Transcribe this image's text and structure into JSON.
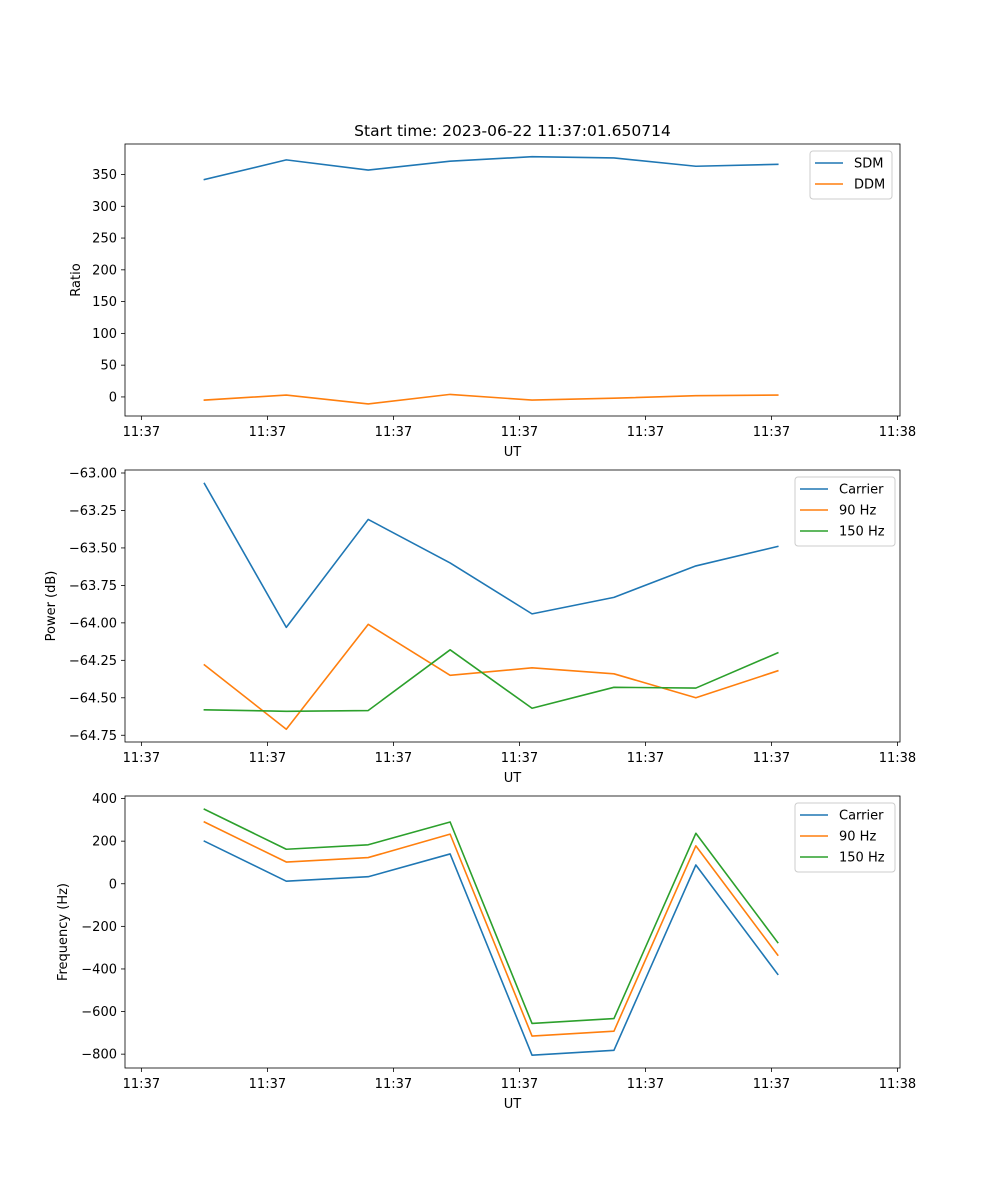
{
  "figure_title": "Start time: 2023-06-22 11:37:01.650714",
  "chart_data": [
    {
      "type": "line",
      "ylabel": "Ratio",
      "xlabel": "UT",
      "x_tick_labels": [
        "11:37",
        "11:37",
        "11:37",
        "11:37",
        "11:37",
        "11:37",
        "11:38"
      ],
      "x_tick_positions": [
        0,
        1,
        2,
        3,
        4,
        5,
        6
      ],
      "x_range": [
        -0.13,
        6.02
      ],
      "x": [
        0.5,
        1.15,
        1.8,
        2.45,
        3.1,
        3.75,
        4.4,
        5.05
      ],
      "ylim": [
        -30,
        398
      ],
      "yticks": [
        0,
        50,
        100,
        150,
        200,
        250,
        300,
        350
      ],
      "legend_position": "upper-right",
      "series": [
        {
          "name": "SDM",
          "color": "#1f77b4",
          "values": [
            342,
            373,
            357,
            371,
            378,
            376,
            363,
            366
          ]
        },
        {
          "name": "DDM",
          "color": "#ff7f0e",
          "values": [
            -5,
            3,
            -11,
            4,
            -5,
            -2,
            2,
            3
          ]
        }
      ]
    },
    {
      "type": "line",
      "ylabel": "Power (dB)",
      "xlabel": "UT",
      "x_tick_labels": [
        "11:37",
        "11:37",
        "11:37",
        "11:37",
        "11:37",
        "11:37",
        "11:38"
      ],
      "x_tick_positions": [
        0,
        1,
        2,
        3,
        4,
        5,
        6
      ],
      "x_range": [
        -0.13,
        6.02
      ],
      "x": [
        0.5,
        1.15,
        1.8,
        2.45,
        3.1,
        3.75,
        4.4,
        5.05
      ],
      "ylim": [
        -64.795,
        -62.98
      ],
      "yticks": [
        -64.75,
        -64.5,
        -64.25,
        -64.0,
        -63.75,
        -63.5,
        -63.25,
        -63.0
      ],
      "ytick_labels": [
        "−64.75",
        "−64.50",
        "−64.25",
        "−64.00",
        "−63.75",
        "−63.50",
        "−63.25",
        "−63.00"
      ],
      "legend_position": "upper-right",
      "series": [
        {
          "name": "Carrier",
          "color": "#1f77b4",
          "values": [
            -63.07,
            -64.03,
            -63.31,
            -63.6,
            -63.94,
            -63.83,
            -63.62,
            -63.49
          ]
        },
        {
          "name": "90 Hz",
          "color": "#ff7f0e",
          "values": [
            -64.28,
            -64.71,
            -64.01,
            -64.35,
            -64.3,
            -64.34,
            -64.5,
            -64.32
          ]
        },
        {
          "name": "150 Hz",
          "color": "#2ca02c",
          "values": [
            -64.58,
            -64.59,
            -64.585,
            -64.18,
            -64.57,
            -64.43,
            -64.435,
            -64.2
          ]
        }
      ]
    },
    {
      "type": "line",
      "ylabel": "Frequency (Hz)",
      "xlabel": "UT",
      "x_tick_labels": [
        "11:37",
        "11:37",
        "11:37",
        "11:37",
        "11:37",
        "11:37",
        "11:38"
      ],
      "x_tick_positions": [
        0,
        1,
        2,
        3,
        4,
        5,
        6
      ],
      "x_range": [
        -0.13,
        6.02
      ],
      "x": [
        0.5,
        1.15,
        1.8,
        2.45,
        3.1,
        3.75,
        4.4,
        5.05
      ],
      "ylim": [
        -865,
        412
      ],
      "yticks": [
        -800,
        -600,
        -400,
        -200,
        0,
        200,
        400
      ],
      "ytick_labels": [
        "−800",
        "−600",
        "−400",
        "−200",
        "0",
        "200",
        "400"
      ],
      "legend_position": "upper-right",
      "series": [
        {
          "name": "Carrier",
          "color": "#1f77b4",
          "values": [
            200,
            12,
            33,
            140,
            -805,
            -782,
            88,
            -425
          ]
        },
        {
          "name": "90 Hz",
          "color": "#ff7f0e",
          "values": [
            290,
            102,
            123,
            233,
            -715,
            -692,
            178,
            -335
          ]
        },
        {
          "name": "150 Hz",
          "color": "#2ca02c",
          "values": [
            350,
            162,
            183,
            290,
            -656,
            -633,
            237,
            -276
          ]
        }
      ]
    }
  ]
}
